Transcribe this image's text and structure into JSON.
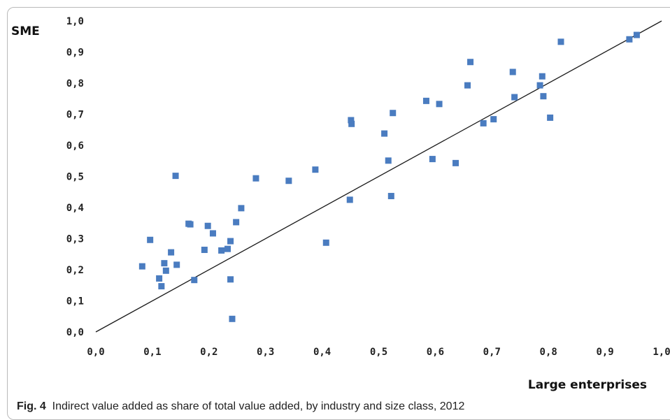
{
  "chart_data": {
    "type": "scatter",
    "ylabel": "SME",
    "xlabel": "Large enterprises",
    "xlim": [
      0,
      1
    ],
    "ylim": [
      0,
      1
    ],
    "x_ticks": [
      "0,0",
      "0,1",
      "0,2",
      "0,3",
      "0,4",
      "0,5",
      "0,6",
      "0,7",
      "0,8",
      "0,9",
      "1,0"
    ],
    "y_ticks": [
      "0,0",
      "0,1",
      "0,2",
      "0,3",
      "0,4",
      "0,5",
      "0,6",
      "0,7",
      "0,8",
      "0,9",
      "1,0"
    ],
    "reference_line": {
      "from": [
        0,
        0
      ],
      "to": [
        1,
        1
      ],
      "color": "#1a1a1a"
    },
    "marker_color": "#4a7cc0",
    "points": [
      {
        "x": 0.082,
        "y": 0.211
      },
      {
        "x": 0.096,
        "y": 0.296
      },
      {
        "x": 0.112,
        "y": 0.172
      },
      {
        "x": 0.116,
        "y": 0.147
      },
      {
        "x": 0.121,
        "y": 0.221
      },
      {
        "x": 0.124,
        "y": 0.197
      },
      {
        "x": 0.133,
        "y": 0.256
      },
      {
        "x": 0.141,
        "y": 0.502
      },
      {
        "x": 0.143,
        "y": 0.216
      },
      {
        "x": 0.164,
        "y": 0.348
      },
      {
        "x": 0.167,
        "y": 0.346
      },
      {
        "x": 0.174,
        "y": 0.167
      },
      {
        "x": 0.192,
        "y": 0.264
      },
      {
        "x": 0.198,
        "y": 0.341
      },
      {
        "x": 0.207,
        "y": 0.317
      },
      {
        "x": 0.222,
        "y": 0.262
      },
      {
        "x": 0.233,
        "y": 0.267
      },
      {
        "x": 0.238,
        "y": 0.292
      },
      {
        "x": 0.238,
        "y": 0.169
      },
      {
        "x": 0.241,
        "y": 0.042
      },
      {
        "x": 0.248,
        "y": 0.353
      },
      {
        "x": 0.257,
        "y": 0.398
      },
      {
        "x": 0.283,
        "y": 0.494
      },
      {
        "x": 0.341,
        "y": 0.486
      },
      {
        "x": 0.388,
        "y": 0.522
      },
      {
        "x": 0.407,
        "y": 0.287
      },
      {
        "x": 0.449,
        "y": 0.425
      },
      {
        "x": 0.451,
        "y": 0.681
      },
      {
        "x": 0.452,
        "y": 0.669
      },
      {
        "x": 0.51,
        "y": 0.638
      },
      {
        "x": 0.517,
        "y": 0.551
      },
      {
        "x": 0.522,
        "y": 0.437
      },
      {
        "x": 0.525,
        "y": 0.704
      },
      {
        "x": 0.584,
        "y": 0.743
      },
      {
        "x": 0.595,
        "y": 0.556
      },
      {
        "x": 0.607,
        "y": 0.733
      },
      {
        "x": 0.636,
        "y": 0.543
      },
      {
        "x": 0.657,
        "y": 0.793
      },
      {
        "x": 0.662,
        "y": 0.868
      },
      {
        "x": 0.685,
        "y": 0.671
      },
      {
        "x": 0.703,
        "y": 0.684
      },
      {
        "x": 0.737,
        "y": 0.836
      },
      {
        "x": 0.74,
        "y": 0.755
      },
      {
        "x": 0.785,
        "y": 0.793
      },
      {
        "x": 0.789,
        "y": 0.822
      },
      {
        "x": 0.791,
        "y": 0.758
      },
      {
        "x": 0.803,
        "y": 0.689
      },
      {
        "x": 0.822,
        "y": 0.933
      },
      {
        "x": 0.943,
        "y": 0.941
      },
      {
        "x": 0.956,
        "y": 0.955
      }
    ]
  },
  "caption": {
    "label": "Fig. 4",
    "text": "Indirect value added as share of total value added, by industry and size class, 2012"
  }
}
